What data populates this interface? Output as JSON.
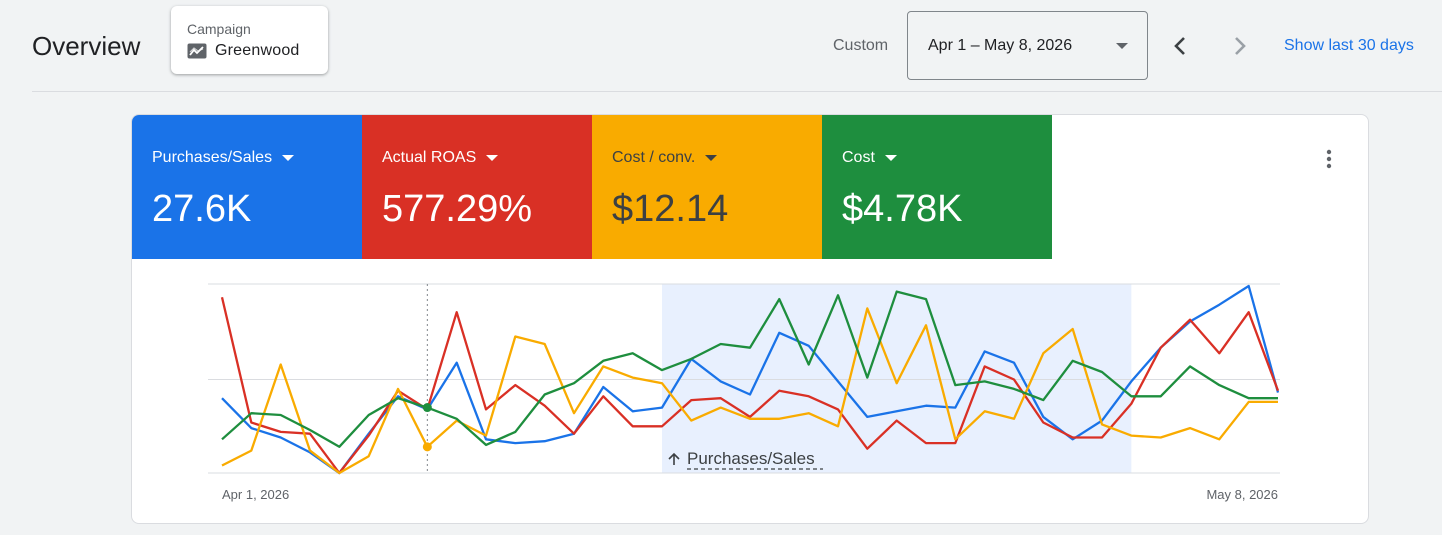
{
  "header": {
    "title": "Overview",
    "campaign": {
      "label": "Campaign",
      "name": "Greenwood",
      "icon": "trend-chart-icon"
    },
    "date_mode": "Custom",
    "date_range": "Apr 1 – May 8, 2026",
    "show_last": "Show last 30 days"
  },
  "metrics": [
    {
      "label": "Purchases/Sales",
      "value": "27.6K",
      "color": "#1a73e8",
      "text_color": "#ffffff"
    },
    {
      "label": "Actual ROAS",
      "value": "577.29%",
      "color": "#d93025",
      "text_color": "#ffffff"
    },
    {
      "label": "Cost / conv.",
      "value": "$12.14",
      "color": "#f9ab00",
      "text_color": "#3c4043"
    },
    {
      "label": "Cost",
      "value": "$4.78K",
      "color": "#1e8e3e",
      "text_color": "#ffffff"
    }
  ],
  "chart_data": {
    "type": "line",
    "x_start": "Apr 1, 2026",
    "x_end": "May 8, 2026",
    "selection_label": "Purchases/Sales",
    "grid": true,
    "normalized": true,
    "series": [
      {
        "name": "Purchases/Sales",
        "color": "#1a73e8",
        "values": [
          0.4,
          0.24,
          0.19,
          0.11,
          0.0,
          0.21,
          0.41,
          0.34,
          0.59,
          0.18,
          0.16,
          0.17,
          0.21,
          0.46,
          0.33,
          0.35,
          0.61,
          0.49,
          0.42,
          0.75,
          0.68,
          0.49,
          0.3,
          0.33,
          0.36,
          0.35,
          0.65,
          0.59,
          0.3,
          0.18,
          0.28,
          0.49,
          0.67,
          0.81,
          0.9,
          1.0,
          0.43
        ]
      },
      {
        "name": "Actual ROAS",
        "color": "#d93025",
        "values": [
          0.94,
          0.27,
          0.22,
          0.21,
          0.0,
          0.2,
          0.44,
          0.34,
          0.86,
          0.34,
          0.47,
          0.36,
          0.21,
          0.41,
          0.25,
          0.25,
          0.39,
          0.4,
          0.3,
          0.44,
          0.41,
          0.34,
          0.13,
          0.28,
          0.16,
          0.16,
          0.57,
          0.5,
          0.27,
          0.19,
          0.19,
          0.37,
          0.67,
          0.82,
          0.64,
          0.86,
          0.44
        ]
      },
      {
        "name": "Cost / conv.",
        "color": "#f9ab00",
        "values": [
          0.04,
          0.12,
          0.58,
          0.12,
          0.0,
          0.09,
          0.45,
          0.14,
          0.28,
          0.2,
          0.73,
          0.69,
          0.32,
          0.57,
          0.51,
          0.48,
          0.28,
          0.35,
          0.29,
          0.29,
          0.32,
          0.25,
          0.88,
          0.48,
          0.79,
          0.18,
          0.33,
          0.29,
          0.64,
          0.77,
          0.26,
          0.2,
          0.19,
          0.24,
          0.18,
          0.38,
          0.38
        ]
      },
      {
        "name": "Cost",
        "color": "#1e8e3e",
        "values": [
          0.18,
          0.32,
          0.31,
          0.23,
          0.14,
          0.31,
          0.4,
          0.35,
          0.29,
          0.15,
          0.22,
          0.42,
          0.48,
          0.6,
          0.64,
          0.55,
          0.61,
          0.69,
          0.67,
          0.93,
          0.58,
          0.95,
          0.51,
          0.97,
          0.93,
          0.47,
          0.49,
          0.45,
          0.39,
          0.6,
          0.54,
          0.41,
          0.41,
          0.57,
          0.47,
          0.4,
          0.4
        ]
      }
    ],
    "highlight_point": 7,
    "selection_start": 15,
    "selection_end": 31
  }
}
